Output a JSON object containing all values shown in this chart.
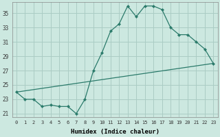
{
  "xlabel": "Humidex (Indice chaleur)",
  "bg_color": "#cce8e0",
  "grid_color": "#aaccc4",
  "line_color": "#2a7a6a",
  "xlim": [
    -0.5,
    23.5
  ],
  "ylim": [
    20.5,
    36.5
  ],
  "yticks": [
    21,
    23,
    25,
    27,
    29,
    31,
    33,
    35
  ],
  "xticks": [
    0,
    1,
    2,
    3,
    4,
    5,
    6,
    7,
    8,
    9,
    10,
    11,
    12,
    13,
    14,
    15,
    16,
    17,
    18,
    19,
    20,
    21,
    22,
    23
  ],
  "line1_x": [
    0,
    1,
    2,
    3,
    4,
    5,
    6,
    7,
    8,
    9,
    10,
    11,
    12,
    13,
    14,
    15,
    16,
    17,
    18,
    19,
    20,
    21,
    22,
    23
  ],
  "line1_y": [
    24.0,
    23.0,
    23.0,
    22.0,
    22.2,
    22.0,
    22.0,
    21.0,
    23.0,
    27.0,
    29.5,
    32.5,
    33.5,
    36.0,
    34.5,
    36.0,
    36.0,
    35.5,
    33.0,
    32.0,
    32.0,
    31.0,
    30.0,
    28.0
  ],
  "line2_x": [
    0,
    23
  ],
  "line2_y": [
    24.0,
    28.0
  ]
}
